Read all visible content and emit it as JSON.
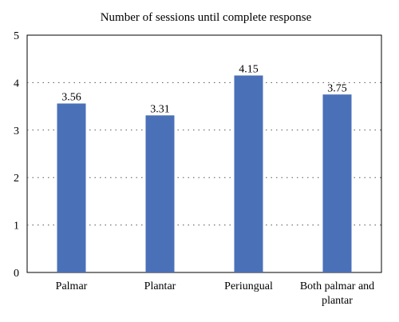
{
  "chart_data": {
    "type": "bar",
    "title": "Number of sessions until complete response",
    "xlabel": "",
    "ylabel": "",
    "categories": [
      [
        "Palmar"
      ],
      [
        "Plantar"
      ],
      [
        "Periungual"
      ],
      [
        "Both palmar and",
        "plantar"
      ]
    ],
    "values": [
      3.56,
      3.31,
      4.15,
      3.75
    ],
    "value_labels": [
      "3.56",
      "3.31",
      "4.15",
      "3.75"
    ],
    "ylim": [
      0,
      5
    ],
    "yticks": [
      0,
      1,
      2,
      3,
      4,
      5
    ],
    "grid": "horizontal dotted",
    "bar_color": "#4a70b8"
  }
}
